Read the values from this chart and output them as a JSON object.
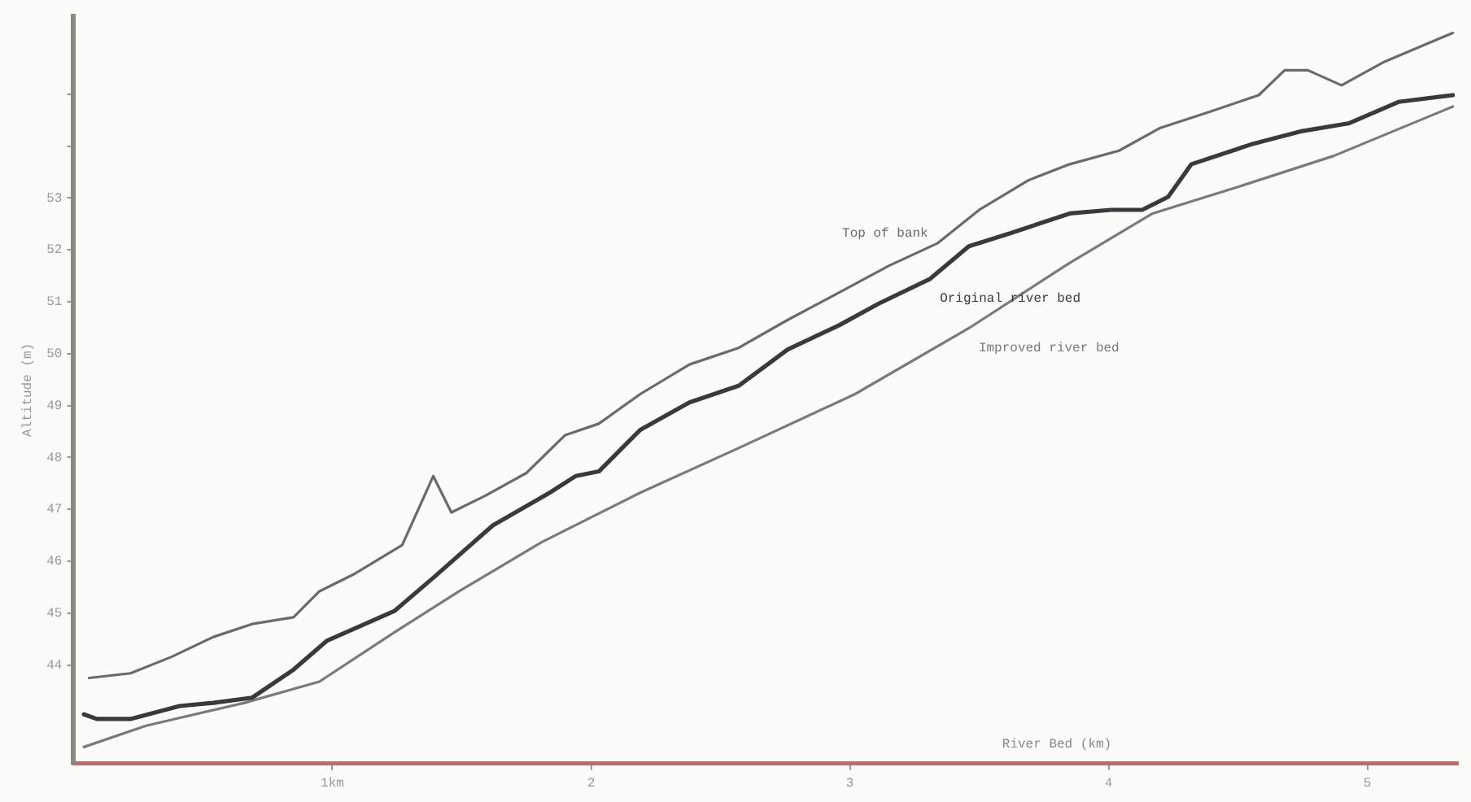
{
  "chart_data": {
    "type": "line",
    "xlabel": "River Bed (km)",
    "ylabel": "Altitude (m)",
    "xlim": [
      0,
      5.35
    ],
    "xticks": [
      {
        "value": 1,
        "label": "1km"
      },
      2,
      3,
      4,
      5
    ],
    "ylim": [
      42.1,
      56.5
    ],
    "yticks": [
      44,
      45,
      46,
      47,
      48,
      49,
      50,
      51,
      52,
      53,
      {
        "value": 54,
        "label": null
      },
      {
        "value": 55,
        "label": null
      }
    ],
    "grid": false,
    "legend": false,
    "marker": "none",
    "line_style": "solid",
    "series": [
      {
        "name": "Top of bank",
        "color": "#6a6a6a",
        "x": [
          0.06,
          0.22,
          0.38,
          0.54,
          0.69,
          0.85,
          0.95,
          1.08,
          1.27,
          1.39,
          1.46,
          1.59,
          1.75,
          1.9,
          2.03,
          2.19,
          2.38,
          2.57,
          2.76,
          2.96,
          3.15,
          3.34,
          3.5,
          3.69,
          3.85,
          4.04,
          4.2,
          4.39,
          4.58,
          4.68,
          4.77,
          4.9,
          5.06,
          5.33
        ],
        "values": [
          43.75,
          43.84,
          44.16,
          44.54,
          44.79,
          44.92,
          45.42,
          45.74,
          46.31,
          47.64,
          46.94,
          47.26,
          47.7,
          48.43,
          48.65,
          49.22,
          49.79,
          50.11,
          50.65,
          51.18,
          51.69,
          52.13,
          52.77,
          53.34,
          53.65,
          53.91,
          54.35,
          54.66,
          54.98,
          55.46,
          55.46,
          55.17,
          55.61,
          56.18
        ]
      },
      {
        "name": "Original river bed",
        "color": "#3a3a3a",
        "x": [
          0.04,
          0.09,
          0.22,
          0.41,
          0.54,
          0.69,
          0.85,
          0.98,
          1.24,
          1.39,
          1.62,
          1.84,
          1.94,
          2.03,
          2.19,
          2.38,
          2.57,
          2.76,
          2.96,
          3.11,
          3.31,
          3.46,
          3.62,
          3.85,
          4.01,
          4.13,
          4.23,
          4.32,
          4.55,
          4.74,
          4.93,
          5.12,
          5.33
        ],
        "values": [
          43.05,
          42.96,
          42.96,
          43.21,
          43.27,
          43.37,
          43.91,
          44.47,
          45.04,
          45.68,
          46.69,
          47.32,
          47.64,
          47.73,
          48.53,
          49.06,
          49.38,
          50.08,
          50.55,
          50.96,
          51.44,
          52.07,
          52.32,
          52.7,
          52.77,
          52.77,
          53.02,
          53.65,
          54.03,
          54.28,
          54.44,
          54.85,
          54.98
        ]
      },
      {
        "name": "Improved river bed",
        "color": "#7a7a7a",
        "x": [
          0.04,
          0.28,
          0.66,
          0.95,
          1.24,
          1.49,
          1.81,
          2.19,
          2.57,
          3.02,
          3.46,
          3.85,
          4.17,
          4.48,
          4.87,
          5.33
        ],
        "values": [
          42.42,
          42.83,
          43.27,
          43.68,
          44.63,
          45.42,
          46.37,
          47.32,
          48.18,
          49.22,
          50.49,
          51.75,
          52.7,
          53.18,
          53.81,
          54.76
        ]
      }
    ]
  }
}
